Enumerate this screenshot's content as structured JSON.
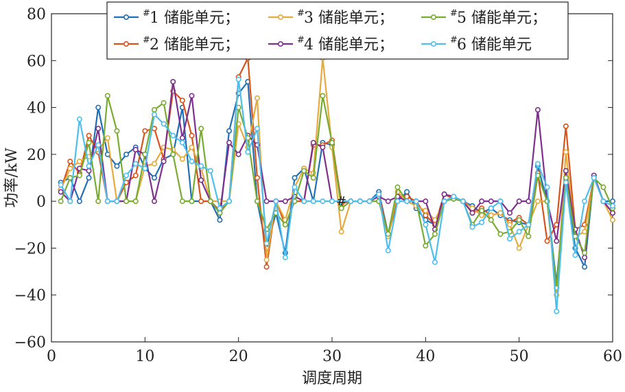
{
  "chart_data": {
    "type": "line",
    "xlabel": "调度周期",
    "ylabel": "功率/kW",
    "xlim": [
      0,
      60
    ],
    "ylim": [
      -60,
      80
    ],
    "xticks": [
      "0",
      "10",
      "20",
      "30",
      "40",
      "50",
      "60"
    ],
    "yticks": [
      "−60",
      "−40",
      "−20",
      "0",
      "20",
      "40",
      "60",
      "80"
    ],
    "grid": false,
    "legend_position": "top",
    "annotation": "#",
    "x": [
      1,
      2,
      3,
      4,
      5,
      6,
      7,
      8,
      9,
      10,
      11,
      12,
      13,
      14,
      15,
      16,
      17,
      18,
      19,
      20,
      21,
      22,
      23,
      24,
      25,
      26,
      27,
      28,
      29,
      30,
      31,
      32,
      33,
      34,
      35,
      36,
      37,
      38,
      39,
      40,
      41,
      42,
      43,
      44,
      45,
      46,
      47,
      48,
      49,
      50,
      51,
      52,
      53,
      54,
      55,
      56,
      57,
      58,
      59,
      60
    ],
    "series": [
      {
        "legend_prefix": "#",
        "legend_text": "1 储能单元；",
        "color": "#1f6fb5",
        "values": [
          8,
          10,
          0,
          10,
          40,
          20,
          15,
          20,
          23,
          14,
          10,
          18,
          20,
          40,
          0,
          0,
          0,
          -8,
          30,
          46,
          51,
          0,
          -20,
          -5,
          -22,
          10,
          14,
          0,
          25,
          24,
          0,
          0,
          0,
          0,
          4,
          -14,
          0,
          4,
          -3,
          -8,
          -10,
          3,
          1,
          0,
          -2,
          -5,
          -3,
          -6,
          -8,
          -9,
          -10,
          15,
          0,
          -35,
          10,
          -20,
          -28,
          11,
          0,
          0
        ]
      },
      {
        "legend_prefix": "#",
        "legend_text": "2 储能单元；",
        "color": "#d95319",
        "values": [
          5,
          17,
          12,
          28,
          21,
          0,
          0,
          8,
          11,
          30,
          31,
          18,
          47,
          43,
          28,
          0,
          0,
          -4,
          0,
          53,
          61,
          10,
          -28,
          0,
          -10,
          0,
          0,
          24,
          24,
          26,
          -1,
          0,
          0,
          0,
          3,
          -15,
          2,
          2,
          0,
          -6,
          -10,
          3,
          1,
          0,
          -5,
          -3,
          -6,
          -5,
          -9,
          -7,
          -10,
          12,
          -17,
          -10,
          32,
          -12,
          -10,
          10,
          0,
          -5
        ]
      },
      {
        "legend_prefix": "#",
        "legend_text": "3 储能单元；",
        "color": "#e6a93d",
        "values": [
          5,
          14,
          17,
          19,
          22,
          27,
          0,
          0,
          0,
          15,
          16,
          23,
          22,
          18,
          23,
          14,
          0,
          0,
          0,
          33,
          23,
          44,
          -25,
          0,
          -8,
          6,
          14,
          12,
          61,
          23,
          -13,
          0,
          0,
          0,
          0,
          -15,
          4,
          0,
          -2,
          -4,
          -8,
          0,
          2,
          0,
          -3,
          -6,
          -6,
          -5,
          -10,
          -20,
          -10,
          0,
          0,
          -40,
          21,
          -15,
          -13,
          10,
          0,
          -8
        ]
      },
      {
        "legend_prefix": "#",
        "legend_text": "4 储能单元；",
        "color": "#7e2f8e",
        "values": [
          4,
          0,
          14,
          13,
          31,
          0,
          0,
          0,
          22,
          20,
          0,
          17,
          51,
          27,
          45,
          9,
          0,
          -5,
          25,
          20,
          28,
          24,
          0,
          0,
          0,
          2,
          0,
          25,
          23,
          0,
          0,
          0,
          0,
          0,
          2,
          0,
          2,
          0,
          0,
          0,
          -12,
          3,
          2,
          0,
          -5,
          0,
          0,
          0,
          -5,
          0,
          0,
          39,
          0,
          -17,
          13,
          -12,
          -24,
          11,
          0,
          -5
        ]
      },
      {
        "legend_prefix": "#",
        "legend_text": "5 储能单元；",
        "color": "#77ac30",
        "values": [
          0,
          10,
          11,
          25,
          0,
          45,
          30,
          0,
          0,
          20,
          39,
          42,
          20,
          0,
          0,
          31,
          0,
          -5,
          0,
          40,
          27,
          0,
          -12,
          -5,
          -10,
          0,
          13,
          10,
          45,
          25,
          -3,
          0,
          0,
          0,
          0,
          -14,
          6,
          0,
          0,
          -19,
          -14,
          0,
          1,
          0,
          -10,
          -4,
          -8,
          -14,
          -13,
          -8,
          -15,
          11,
          0,
          -37,
          10,
          -15,
          -22,
          10,
          6,
          -3
        ]
      },
      {
        "legend_prefix": "#",
        "legend_text": "6 储能单元",
        "color": "#4dbeee",
        "values": [
          7,
          0,
          35,
          15,
          24,
          0,
          0,
          11,
          16,
          14,
          37,
          33,
          28,
          25,
          17,
          15,
          13,
          -3,
          0,
          52,
          21,
          31,
          -18,
          0,
          -24,
          6,
          0,
          0,
          0,
          0,
          0,
          0,
          0,
          0,
          3,
          -21,
          0,
          0,
          0,
          -10,
          -26,
          0,
          2,
          0,
          -11,
          -9,
          -3,
          0,
          -16,
          -13,
          -10,
          16,
          6,
          -47,
          8,
          -23,
          0,
          10,
          0,
          -2
        ]
      }
    ]
  }
}
